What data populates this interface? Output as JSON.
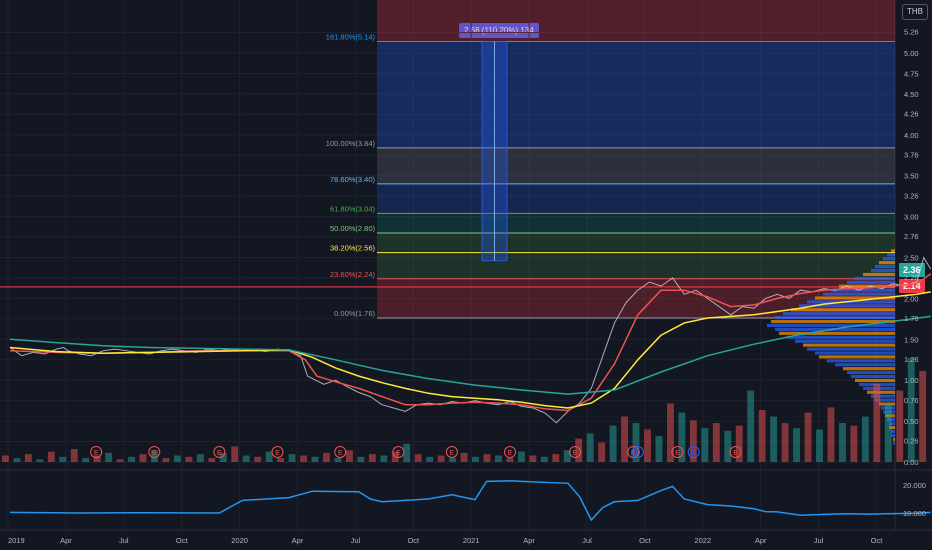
{
  "chart_data": {
    "type": "line",
    "currency": "THB",
    "x_ticks": [
      "2019",
      "Apr",
      "Jul",
      "Oct",
      "2020",
      "Apr",
      "Jul",
      "Oct",
      "2021",
      "Apr",
      "Jul",
      "Oct",
      "2022",
      "Apr",
      "Jul",
      "Oct"
    ],
    "y_ticks": [
      "5.26",
      "5.00",
      "4.75",
      "4.50",
      "4.26",
      "4.00",
      "3.76",
      "3.50",
      "3.26",
      "3.00",
      "2.76",
      "2.50",
      "2.26",
      "2.00",
      "1.76",
      "1.50",
      "1.26",
      "1.00",
      "0.76",
      "0.50",
      "0.26",
      "0.00"
    ],
    "lower_y_ticks": [
      "20.000",
      "10.000"
    ],
    "last_price": "2.36",
    "ref_price": "2.14",
    "fibonacci": [
      {
        "label": "161.80%(5.14)",
        "price": 5.14,
        "color": "#2196f3"
      },
      {
        "label": "100.00%(3.84)",
        "price": 3.84,
        "color": "#9598a1"
      },
      {
        "label": "78.60%(3.40)",
        "price": 3.4,
        "color": "#64b5f6"
      },
      {
        "label": "61.80%(3.04)",
        "price": 3.04,
        "color": "#4caf50"
      },
      {
        "label": "50.00%(2.80)",
        "price": 2.8,
        "color": "#81c784"
      },
      {
        "label": "38.20%(2.56)",
        "price": 2.56,
        "color": "#ffeb3b"
      },
      {
        "label": "23.60%(2.24)",
        "price": 2.24,
        "color": "#ef5350"
      },
      {
        "label": "0.00%(1.76)",
        "price": 1.76,
        "color": "#9598a1"
      }
    ],
    "measure_label": "2.68 (110.20%) 134",
    "earnings_marker": "E",
    "dividend_marker": "D",
    "series": [
      {
        "name": "",
        "color": "#d1d4dc",
        "values": [
          [
            0,
            1.4
          ],
          [
            0.05,
            1.3
          ],
          [
            0.1,
            1.34
          ],
          [
            0.15,
            1.32
          ],
          [
            0.2,
            1.38
          ],
          [
            0.23,
            1.4
          ],
          [
            0.25,
            1.36
          ],
          [
            0.3,
            1.32
          ],
          [
            0.35,
            1.3
          ],
          [
            0.4,
            1.36
          ],
          [
            0.45,
            1.38
          ],
          [
            0.5,
            1.36
          ],
          [
            0.55,
            1.34
          ],
          [
            0.6,
            1.32
          ],
          [
            0.65,
            1.36
          ],
          [
            0.7,
            1.38
          ],
          [
            0.75,
            1.36
          ],
          [
            0.8,
            1.34
          ],
          [
            0.85,
            1.38
          ],
          [
            0.9,
            1.36
          ],
          [
            0.95,
            1.38
          ],
          [
            1.0,
            1.36
          ],
          [
            1.05,
            1.37
          ],
          [
            1.1,
            1.35
          ],
          [
            1.15,
            1.38
          ],
          [
            1.2,
            1.36
          ],
          [
            1.25,
            1.3
          ],
          [
            1.28,
            1.05
          ],
          [
            1.35,
            0.95
          ],
          [
            1.4,
            1.0
          ],
          [
            1.45,
            0.92
          ],
          [
            1.5,
            0.85
          ],
          [
            1.55,
            0.8
          ],
          [
            1.6,
            0.7
          ],
          [
            1.65,
            0.66
          ],
          [
            1.7,
            0.62
          ],
          [
            1.75,
            0.7
          ],
          [
            1.8,
            0.72
          ],
          [
            1.85,
            0.7
          ],
          [
            1.9,
            0.74
          ],
          [
            1.95,
            0.72
          ],
          [
            2.0,
            0.75
          ],
          [
            2.05,
            0.72
          ],
          [
            2.1,
            0.7
          ],
          [
            2.15,
            0.74
          ],
          [
            2.2,
            0.68
          ],
          [
            2.25,
            0.66
          ],
          [
            2.3,
            0.6
          ],
          [
            2.35,
            0.48
          ],
          [
            2.4,
            0.62
          ],
          [
            2.45,
            0.72
          ],
          [
            2.5,
            0.9
          ],
          [
            2.55,
            1.3
          ],
          [
            2.6,
            1.7
          ],
          [
            2.65,
            1.95
          ],
          [
            2.7,
            2.1
          ],
          [
            2.75,
            2.2
          ],
          [
            2.8,
            2.15
          ],
          [
            2.85,
            2.25
          ],
          [
            2.9,
            2.05
          ],
          [
            2.95,
            2.1
          ],
          [
            3.0,
            2.0
          ],
          [
            3.05,
            1.9
          ],
          [
            3.1,
            1.8
          ],
          [
            3.15,
            1.9
          ],
          [
            3.2,
            1.88
          ],
          [
            3.25,
            2.0
          ],
          [
            3.3,
            2.05
          ],
          [
            3.35,
            2.0
          ],
          [
            3.4,
            2.1
          ],
          [
            3.45,
            2.08
          ],
          [
            3.5,
            2.12
          ],
          [
            3.55,
            2.1
          ],
          [
            3.6,
            2.15
          ],
          [
            3.65,
            2.1
          ],
          [
            3.7,
            2.15
          ],
          [
            3.75,
            2.12
          ],
          [
            3.8,
            2.18
          ],
          [
            3.85,
            2.15
          ],
          [
            3.9,
            2.2
          ],
          [
            3.93,
            2.5
          ],
          [
            3.96,
            2.36
          ]
        ]
      },
      {
        "name": "",
        "color": "#ef5350",
        "values": [
          [
            0,
            1.36
          ],
          [
            0.2,
            1.34
          ],
          [
            0.4,
            1.33
          ],
          [
            0.6,
            1.34
          ],
          [
            0.8,
            1.36
          ],
          [
            1.0,
            1.36
          ],
          [
            1.2,
            1.36
          ],
          [
            1.27,
            1.25
          ],
          [
            1.32,
            1.05
          ],
          [
            1.4,
            0.98
          ],
          [
            1.5,
            0.9
          ],
          [
            1.6,
            0.8
          ],
          [
            1.7,
            0.7
          ],
          [
            1.8,
            0.7
          ],
          [
            1.9,
            0.72
          ],
          [
            2.0,
            0.73
          ],
          [
            2.1,
            0.72
          ],
          [
            2.2,
            0.7
          ],
          [
            2.3,
            0.65
          ],
          [
            2.4,
            0.63
          ],
          [
            2.5,
            0.78
          ],
          [
            2.6,
            1.2
          ],
          [
            2.7,
            1.8
          ],
          [
            2.8,
            2.1
          ],
          [
            2.9,
            2.1
          ],
          [
            3.0,
            2.02
          ],
          [
            3.1,
            1.9
          ],
          [
            3.2,
            1.92
          ],
          [
            3.3,
            2.0
          ],
          [
            3.4,
            2.06
          ],
          [
            3.5,
            2.1
          ],
          [
            3.6,
            2.12
          ],
          [
            3.7,
            2.13
          ],
          [
            3.8,
            2.15
          ],
          [
            3.9,
            2.18
          ],
          [
            3.96,
            2.3
          ]
        ]
      },
      {
        "name": "",
        "color": "#ffeb3b",
        "values": [
          [
            0,
            1.4
          ],
          [
            0.2,
            1.35
          ],
          [
            0.4,
            1.33
          ],
          [
            0.6,
            1.34
          ],
          [
            0.8,
            1.35
          ],
          [
            1.0,
            1.36
          ],
          [
            1.2,
            1.37
          ],
          [
            1.3,
            1.28
          ],
          [
            1.4,
            1.15
          ],
          [
            1.5,
            1.05
          ],
          [
            1.6,
            0.97
          ],
          [
            1.7,
            0.9
          ],
          [
            1.8,
            0.84
          ],
          [
            1.9,
            0.8
          ],
          [
            2.0,
            0.78
          ],
          [
            2.1,
            0.76
          ],
          [
            2.2,
            0.73
          ],
          [
            2.3,
            0.69
          ],
          [
            2.4,
            0.66
          ],
          [
            2.5,
            0.72
          ],
          [
            2.6,
            0.9
          ],
          [
            2.7,
            1.25
          ],
          [
            2.8,
            1.55
          ],
          [
            2.9,
            1.7
          ],
          [
            3.0,
            1.76
          ],
          [
            3.1,
            1.78
          ],
          [
            3.2,
            1.8
          ],
          [
            3.3,
            1.84
          ],
          [
            3.4,
            1.88
          ],
          [
            3.5,
            1.93
          ],
          [
            3.6,
            1.96
          ],
          [
            3.7,
            1.99
          ],
          [
            3.8,
            2.02
          ],
          [
            3.9,
            2.05
          ],
          [
            3.96,
            2.08
          ]
        ]
      },
      {
        "name": "",
        "color": "#26a69a",
        "values": [
          [
            0,
            1.5
          ],
          [
            0.2,
            1.46
          ],
          [
            0.4,
            1.42
          ],
          [
            0.6,
            1.4
          ],
          [
            0.8,
            1.39
          ],
          [
            1.0,
            1.38
          ],
          [
            1.2,
            1.37
          ],
          [
            1.4,
            1.25
          ],
          [
            1.6,
            1.12
          ],
          [
            1.8,
            1.02
          ],
          [
            2.0,
            0.94
          ],
          [
            2.2,
            0.88
          ],
          [
            2.4,
            0.83
          ],
          [
            2.6,
            0.88
          ],
          [
            2.8,
            1.1
          ],
          [
            3.0,
            1.3
          ],
          [
            3.2,
            1.44
          ],
          [
            3.4,
            1.56
          ],
          [
            3.6,
            1.65
          ],
          [
            3.8,
            1.72
          ],
          [
            3.96,
            1.78
          ]
        ]
      },
      {
        "name": "",
        "color": "#2196f3",
        "values": [
          [
            0,
            10.2
          ],
          [
            0.3,
            10.0
          ],
          [
            0.6,
            10.1
          ],
          [
            0.9,
            10.0
          ],
          [
            1.0,
            14.5
          ],
          [
            1.2,
            15.5
          ],
          [
            1.3,
            17.8
          ],
          [
            1.5,
            17.6
          ],
          [
            1.55,
            15.0
          ],
          [
            1.6,
            14.0
          ],
          [
            1.8,
            15.0
          ],
          [
            1.9,
            16.5
          ],
          [
            2.0,
            14.8
          ],
          [
            2.05,
            21.3
          ],
          [
            2.15,
            21.5
          ],
          [
            2.2,
            21.3
          ],
          [
            2.4,
            20.6
          ],
          [
            2.45,
            15.8
          ],
          [
            2.5,
            7.5
          ],
          [
            2.55,
            12.0
          ],
          [
            2.6,
            14.0
          ],
          [
            2.7,
            14.5
          ],
          [
            2.8,
            18.0
          ],
          [
            2.85,
            19.5
          ],
          [
            2.9,
            15.0
          ],
          [
            3.0,
            13.0
          ],
          [
            3.1,
            12.5
          ],
          [
            3.2,
            11.5
          ],
          [
            3.25,
            10.5
          ],
          [
            3.3,
            10.4
          ],
          [
            3.4,
            9.2
          ],
          [
            3.5,
            9.5
          ],
          [
            3.6,
            9.7
          ],
          [
            3.7,
            9.6
          ],
          [
            3.8,
            9.8
          ],
          [
            3.9,
            9.9
          ],
          [
            3.96,
            10.2
          ]
        ]
      }
    ],
    "volume": [
      5,
      3,
      6,
      2,
      8,
      4,
      10,
      3,
      5,
      7,
      2,
      4,
      6,
      9,
      3,
      5,
      4,
      6,
      3,
      7,
      12,
      5,
      4,
      8,
      3,
      6,
      5,
      4,
      7,
      3,
      9,
      4,
      6,
      5,
      8,
      14,
      6,
      4,
      5,
      3,
      7,
      4,
      6,
      5,
      3,
      8,
      5,
      4,
      6,
      9,
      18,
      22,
      15,
      28,
      35,
      30,
      25,
      20,
      45,
      38,
      32,
      26,
      30,
      24,
      28,
      55,
      40,
      35,
      30,
      26,
      38,
      25,
      42,
      30,
      28,
      35,
      60,
      45,
      55,
      80,
      70
    ],
    "volume_profile": [
      2,
      4,
      6,
      8,
      10,
      12,
      16,
      20,
      24,
      28,
      32,
      36,
      40,
      44,
      48,
      52,
      56,
      60,
      62,
      64,
      60,
      58,
      54,
      50,
      46,
      44,
      40,
      38,
      34,
      30,
      26,
      24,
      22,
      20,
      18,
      16,
      14,
      12,
      10,
      8,
      7,
      6,
      5,
      4,
      3,
      3,
      2,
      2,
      1,
      1
    ],
    "earnings_positions": [
      0.22,
      0.47,
      0.75,
      1.0,
      1.27,
      1.52,
      1.75,
      2.0,
      2.28,
      2.53,
      2.72,
      2.97
    ],
    "dividend_positions": [
      2.55,
      2.79
    ]
  }
}
